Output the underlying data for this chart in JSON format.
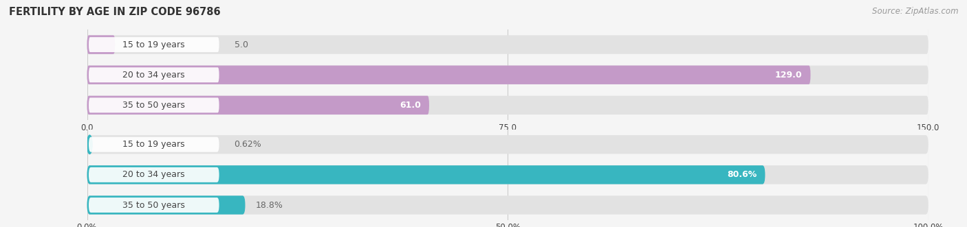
{
  "title": "FERTILITY BY AGE IN ZIP CODE 96786",
  "source": "Source: ZipAtlas.com",
  "top_chart": {
    "categories": [
      "15 to 19 years",
      "20 to 34 years",
      "35 to 50 years"
    ],
    "values": [
      5.0,
      129.0,
      61.0
    ],
    "bar_color": "#c49ac8",
    "xlim": [
      0,
      150
    ],
    "xticks": [
      0.0,
      75.0,
      150.0
    ]
  },
  "bottom_chart": {
    "categories": [
      "15 to 19 years",
      "20 to 34 years",
      "35 to 50 years"
    ],
    "values": [
      0.62,
      80.6,
      18.8
    ],
    "bar_color": "#38b6c0",
    "xlim": [
      0,
      100
    ],
    "xticks": [
      0.0,
      50.0,
      100.0
    ]
  },
  "bg_color": "#f5f5f5",
  "bar_bg_color": "#e2e2e2",
  "label_bg_color": "#ffffff",
  "label_color": "#444444",
  "title_color": "#333333",
  "source_color": "#999999",
  "value_inside_color": "#ffffff",
  "value_outside_color": "#666666",
  "bar_height": 0.62,
  "category_fontsize": 9,
  "value_fontsize": 9,
  "tick_fontsize": 8.5
}
